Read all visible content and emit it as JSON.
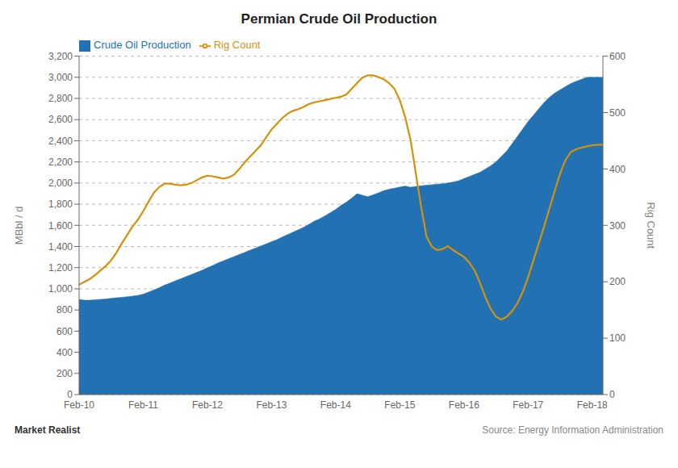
{
  "chart_data": {
    "type": "area",
    "title": "Permian Crude Oil Production",
    "ylabel": "MBbl / d",
    "y2label": "Rig Count",
    "annotations": [
      "Market Realist",
      "Source: Energy Information Administration"
    ],
    "categories": [
      "Feb-10",
      null,
      null,
      null,
      null,
      null,
      null,
      null,
      null,
      null,
      null,
      null,
      "Feb-11",
      null,
      null,
      null,
      null,
      null,
      null,
      null,
      null,
      null,
      null,
      null,
      "Feb-12",
      null,
      null,
      null,
      null,
      null,
      null,
      null,
      null,
      null,
      null,
      null,
      "Feb-13",
      null,
      null,
      null,
      null,
      null,
      null,
      null,
      null,
      null,
      null,
      null,
      "Feb-14",
      null,
      null,
      null,
      null,
      null,
      null,
      null,
      null,
      null,
      null,
      null,
      "Feb-15",
      null,
      null,
      null,
      null,
      null,
      null,
      null,
      null,
      null,
      null,
      null,
      "Feb-16",
      null,
      null,
      null,
      null,
      null,
      null,
      null,
      null,
      null,
      null,
      null,
      "Feb-17",
      null,
      null,
      null,
      null,
      null,
      null,
      null,
      null,
      null,
      null,
      null,
      "Feb-18",
      null,
      null
    ],
    "ylim": [
      0,
      3200
    ],
    "yticks": [
      0,
      200,
      400,
      600,
      800,
      {
        "value": 1000,
        "label": "1,000"
      },
      {
        "value": 1200,
        "label": "1,200"
      },
      {
        "value": 1400,
        "label": "1,400"
      },
      {
        "value": 1600,
        "label": "1,600"
      },
      {
        "value": 1800,
        "label": "1,800"
      },
      {
        "value": 2000,
        "label": "2,000"
      },
      {
        "value": 2200,
        "label": "2,200"
      },
      {
        "value": 2400,
        "label": "2,400"
      },
      {
        "value": 2600,
        "label": "2,600"
      },
      {
        "value": 2800,
        "label": "2,800"
      },
      {
        "value": 3000,
        "label": "3,000"
      },
      {
        "value": 3200,
        "label": "3,200"
      }
    ],
    "y2lim": [
      0,
      600
    ],
    "y2ticks": [
      0,
      100,
      200,
      300,
      400,
      500,
      600
    ],
    "grid": true,
    "legend": "upper left",
    "series": [
      {
        "name": "Crude Oil Production",
        "type": "area",
        "color": "#2271b3",
        "values": [
          900,
          893,
          893,
          897,
          900,
          905,
          910,
          915,
          920,
          925,
          930,
          938,
          950,
          968,
          990,
          1010,
          1035,
          1055,
          1075,
          1095,
          1115,
          1135,
          1155,
          1175,
          1200,
          1220,
          1245,
          1265,
          1285,
          1305,
          1325,
          1345,
          1365,
          1385,
          1405,
          1425,
          1445,
          1465,
          1490,
          1512,
          1535,
          1558,
          1582,
          1610,
          1640,
          1662,
          1690,
          1720,
          1750,
          1790,
          1820,
          1858,
          1900,
          1885,
          1872,
          1888,
          1908,
          1928,
          1942,
          1952,
          1962,
          1972,
          1960,
          1968,
          1974,
          1980,
          1984,
          1990,
          1994,
          2000,
          2010,
          2022,
          2042,
          2062,
          2082,
          2102,
          2132,
          2162,
          2202,
          2252,
          2302,
          2372,
          2442,
          2512,
          2582,
          2642,
          2702,
          2762,
          2812,
          2852,
          2882,
          2912,
          2942,
          2962,
          2982,
          3000,
          3000,
          3000,
          3000
        ]
      },
      {
        "name": "Rig Count",
        "type": "line",
        "axis": "y2",
        "color": "#d4920a",
        "values": [
          195,
          200,
          205,
          212,
          220,
          228,
          238,
          252,
          268,
          283,
          298,
          310,
          325,
          342,
          358,
          368,
          374,
          374,
          372,
          371,
          372,
          375,
          380,
          385,
          388,
          387,
          385,
          383,
          385,
          390,
          400,
          412,
          422,
          432,
          442,
          456,
          470,
          480,
          490,
          498,
          503,
          506,
          510,
          515,
          518,
          520,
          522,
          524,
          526,
          528,
          532,
          542,
          552,
          562,
          566,
          566,
          563,
          559,
          552,
          542,
          522,
          492,
          452,
          392,
          332,
          280,
          262,
          256,
          258,
          263,
          256,
          250,
          244,
          234,
          220,
          198,
          173,
          152,
          138,
          133,
          138,
          148,
          162,
          182,
          208,
          238,
          268,
          298,
          330,
          362,
          392,
          416,
          430,
          435,
          438,
          440,
          442,
          443,
          443
        ]
      }
    ]
  }
}
